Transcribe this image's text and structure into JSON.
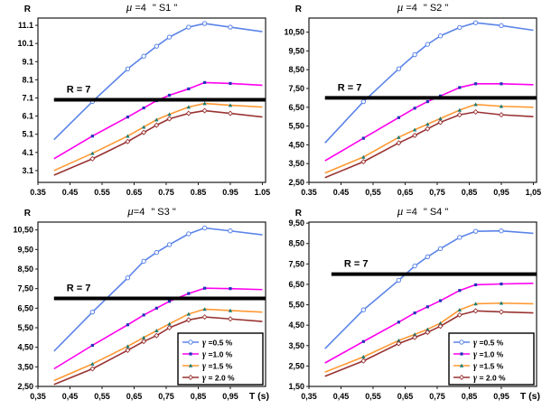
{
  "figure": {
    "background": "#ffffff"
  },
  "colors": {
    "blue": "#5b84e8",
    "magenta": "#ff00ee",
    "orange": "#ff9933",
    "darkred": "#993333",
    "hline": "#000000",
    "frame": "#1a1a1a",
    "marker_square": "#2233bb",
    "marker_tri": "#1b7b74"
  },
  "chart_data": [
    {
      "id": "s1",
      "type": "line",
      "title_mu": "μ",
      "title_eq": " =4",
      "title_name": "\" S1 \"",
      "ylabel": "R",
      "xlabel": "",
      "xlim": [
        0.35,
        1.06
      ],
      "ylim": [
        2.45,
        11.5
      ],
      "x_tick_values": [
        0.35,
        0.45,
        0.55,
        0.65,
        0.75,
        0.85,
        0.95,
        1.05
      ],
      "x_tick_labels": [
        "0.35",
        "0.45",
        "0.55",
        "0.65",
        "0.75",
        "0.85",
        "0.95",
        "1.05"
      ],
      "y_tick_values": [
        3.1,
        4.1,
        5.1,
        6.1,
        7.1,
        8.1,
        9.1,
        10.1,
        11.1
      ],
      "y_tick_labels": [
        "3.1",
        "4.1",
        "5.1",
        "6.1",
        "7.1",
        "8.1",
        "9.1",
        "10.1",
        "11.1"
      ],
      "hline": {
        "y": 7,
        "label": "R = 7",
        "x_start": 0.4
      },
      "legend_visible": false,
      "x": [
        0.4,
        0.52,
        0.63,
        0.68,
        0.72,
        0.76,
        0.82,
        0.87,
        0.95,
        1.05
      ],
      "series": [
        {
          "label_gamma": "γ",
          "label_text": " =0.5 %",
          "color_key": "blue",
          "marker": "circle",
          "y": [
            4.8,
            6.9,
            8.7,
            9.4,
            9.95,
            10.45,
            11.0,
            11.2,
            11.0,
            10.75
          ]
        },
        {
          "label_gamma": "γ",
          "label_text": " =1.0 %",
          "color_key": "magenta",
          "marker": "square",
          "y": [
            3.75,
            5.0,
            6.05,
            6.55,
            6.95,
            7.25,
            7.6,
            7.95,
            7.9,
            7.8
          ]
        },
        {
          "label_gamma": "γ",
          "label_text": " =1.5 %",
          "color_key": "orange",
          "marker": "triangle",
          "y": [
            3.1,
            4.05,
            5.0,
            5.5,
            5.9,
            6.2,
            6.6,
            6.8,
            6.7,
            6.6
          ]
        },
        {
          "label_gamma": "γ",
          "label_text": " = 2.0 %",
          "color_key": "darkred",
          "marker": "diamond",
          "y": [
            2.85,
            3.75,
            4.7,
            5.2,
            5.6,
            5.95,
            6.25,
            6.4,
            6.25,
            6.05
          ]
        }
      ]
    },
    {
      "id": "s2",
      "type": "line",
      "title_mu": "μ",
      "title_eq": " =4",
      "title_name": "\" S2 \"",
      "ylabel": "R",
      "xlabel": "",
      "xlim": [
        0.35,
        1.06
      ],
      "ylim": [
        2.5,
        11.25
      ],
      "x_tick_values": [
        0.35,
        0.45,
        0.55,
        0.65,
        0.75,
        0.85,
        0.95,
        1.05
      ],
      "x_tick_labels": [
        "0.35",
        "0.45",
        "0,55",
        "0,65",
        "0,75",
        "0,85",
        "0,95",
        "1,05"
      ],
      "y_tick_values": [
        2.5,
        3.5,
        4.5,
        5.5,
        6.5,
        7.5,
        8.5,
        9.5,
        10.5
      ],
      "y_tick_labels": [
        "2,50",
        "3,50",
        "4,50",
        "5,50",
        "6,50",
        "7,50",
        "8,50",
        "9,50",
        "10,50"
      ],
      "hline": {
        "y": 7,
        "label": "R = 7",
        "x_start": 0.4
      },
      "legend_visible": false,
      "x": [
        0.4,
        0.52,
        0.63,
        0.68,
        0.72,
        0.76,
        0.82,
        0.87,
        0.95,
        1.05
      ],
      "series": [
        {
          "label_gamma": "γ",
          "label_text": " =0.5 %",
          "color_key": "blue",
          "marker": "circle",
          "y": [
            4.6,
            6.8,
            8.55,
            9.3,
            9.85,
            10.3,
            10.75,
            11.0,
            10.85,
            10.6
          ]
        },
        {
          "label_gamma": "γ",
          "label_text": " =1.0 %",
          "color_key": "magenta",
          "marker": "square",
          "y": [
            3.65,
            4.85,
            5.95,
            6.45,
            6.8,
            7.1,
            7.55,
            7.75,
            7.75,
            7.7
          ]
        },
        {
          "label_gamma": "γ",
          "label_text": " =1.5 %",
          "color_key": "orange",
          "marker": "triangle",
          "y": [
            3.0,
            3.85,
            4.9,
            5.3,
            5.6,
            5.9,
            6.35,
            6.65,
            6.55,
            6.5
          ]
        },
        {
          "label_gamma": "γ",
          "label_text": " = 2.0 %",
          "color_key": "darkred",
          "marker": "diamond",
          "y": [
            2.75,
            3.6,
            4.6,
            5.0,
            5.35,
            5.7,
            6.1,
            6.25,
            6.1,
            6.0
          ]
        }
      ]
    },
    {
      "id": "s3",
      "type": "line",
      "title_mu": "μ",
      "title_eq": "=4",
      "title_name": "\" S3 \"",
      "ylabel": "R",
      "xlabel": "T (s)",
      "xlim": [
        0.35,
        1.06
      ],
      "ylim": [
        2.5,
        10.9
      ],
      "x_tick_values": [
        0.35,
        0.45,
        0.55,
        0.65,
        0.75,
        0.85,
        0.95
      ],
      "x_tick_labels": [
        "0,35",
        "0,45",
        "0,55",
        "0,65",
        "0,75",
        "0,85",
        "0,95"
      ],
      "y_tick_values": [
        2.5,
        3.5,
        4.5,
        5.5,
        6.5,
        7.5,
        8.5,
        9.5,
        10.5
      ],
      "y_tick_labels": [
        "2,50",
        "3,50",
        "4,50",
        "5,50",
        "6,50",
        "7,50",
        "8,50",
        "9,50",
        "10,50"
      ],
      "hline": {
        "y": 7,
        "label": "R = 7",
        "x_start": 0.4
      },
      "legend_visible": true,
      "x": [
        0.4,
        0.52,
        0.63,
        0.68,
        0.72,
        0.76,
        0.82,
        0.87,
        0.95,
        1.05
      ],
      "series": [
        {
          "label_gamma": "γ",
          "label_text": " =0.5 %",
          "color_key": "blue",
          "marker": "circle",
          "y": [
            4.3,
            6.3,
            8.05,
            8.9,
            9.35,
            9.75,
            10.3,
            10.6,
            10.45,
            10.25
          ]
        },
        {
          "label_gamma": "γ",
          "label_text": " =1.0 %",
          "color_key": "magenta",
          "marker": "square",
          "y": [
            3.4,
            4.6,
            5.65,
            6.15,
            6.5,
            6.85,
            7.25,
            7.52,
            7.5,
            7.45
          ]
        },
        {
          "label_gamma": "γ",
          "label_text": " =1.5 %",
          "color_key": "orange",
          "marker": "triangle",
          "y": [
            2.8,
            3.65,
            4.55,
            5.0,
            5.35,
            5.7,
            6.2,
            6.45,
            6.38,
            6.3
          ]
        },
        {
          "label_gamma": "γ",
          "label_text": " = 2.0 %",
          "color_key": "darkred",
          "marker": "diamond",
          "y": [
            2.6,
            3.4,
            4.35,
            4.8,
            5.1,
            5.5,
            5.9,
            6.05,
            5.95,
            5.82
          ]
        }
      ]
    },
    {
      "id": "s4",
      "type": "line",
      "title_mu": "μ",
      "title_eq": " =4",
      "title_name": "\" S4 \"",
      "ylabel": "R",
      "xlabel": "T (s)",
      "xlim": [
        0.35,
        1.06
      ],
      "ylim": [
        1.5,
        9.55
      ],
      "x_tick_values": [
        0.35,
        0.45,
        0.55,
        0.65,
        0.75,
        0.85,
        0.95
      ],
      "x_tick_labels": [
        "0,35",
        "0,45",
        "0,55",
        "0,65",
        "0,75",
        "0,85",
        "0,95"
      ],
      "y_tick_values": [
        1.5,
        2.5,
        3.5,
        4.5,
        5.5,
        6.5,
        7.5,
        8.5,
        9.5
      ],
      "y_tick_labels": [
        "1,50",
        "2,50",
        "3,50",
        "4,50",
        "5,50",
        "6,50",
        "7,50",
        "8,50",
        "9,50"
      ],
      "hline": {
        "y": 7,
        "label": "R = 7",
        "x_start": 0.42
      },
      "legend_visible": true,
      "x": [
        0.4,
        0.52,
        0.63,
        0.68,
        0.72,
        0.76,
        0.82,
        0.87,
        0.95,
        1.05
      ],
      "series": [
        {
          "label_gamma": "γ",
          "label_text": " =0.5 %",
          "color_key": "blue",
          "marker": "circle",
          "y": [
            3.35,
            5.25,
            6.7,
            7.4,
            7.85,
            8.25,
            8.8,
            9.1,
            9.12,
            9.0
          ]
        },
        {
          "label_gamma": "γ",
          "label_text": " =1.0 %",
          "color_key": "magenta",
          "marker": "square",
          "y": [
            2.65,
            3.7,
            4.65,
            5.1,
            5.4,
            5.7,
            6.2,
            6.48,
            6.52,
            6.55
          ]
        },
        {
          "label_gamma": "γ",
          "label_text": " =1.5 %",
          "color_key": "orange",
          "marker": "triangle",
          "y": [
            2.2,
            2.95,
            3.75,
            4.05,
            4.3,
            4.6,
            5.25,
            5.55,
            5.58,
            5.55
          ]
        },
        {
          "label_gamma": "γ",
          "label_text": " = 2.0 %",
          "color_key": "darkred",
          "marker": "diamond",
          "y": [
            2.0,
            2.75,
            3.6,
            3.9,
            4.15,
            4.45,
            5.0,
            5.2,
            5.15,
            5.1
          ]
        }
      ]
    }
  ]
}
